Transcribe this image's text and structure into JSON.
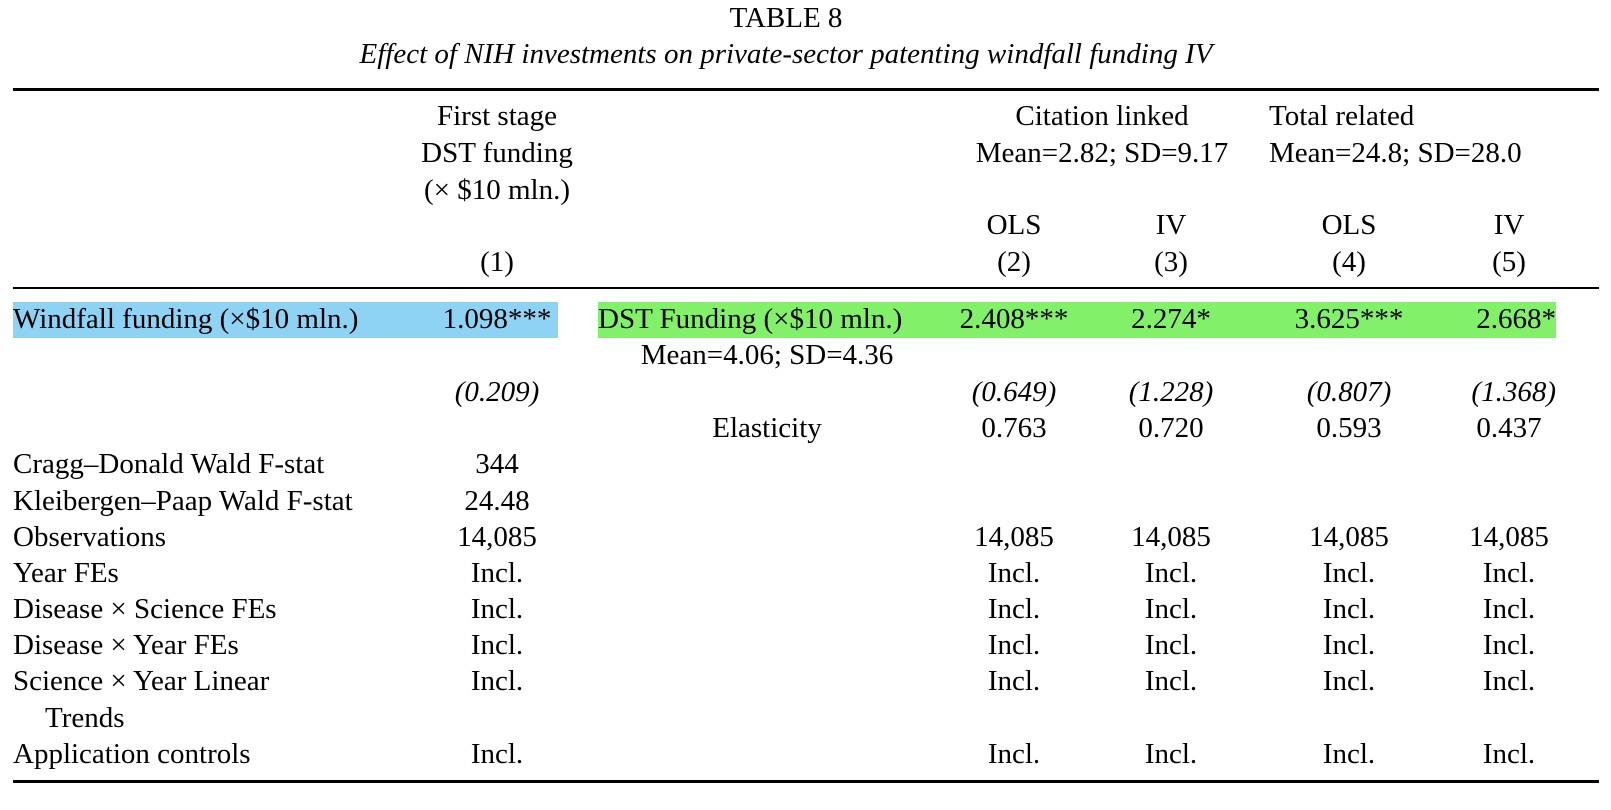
{
  "title": "TABLE 8",
  "subtitle": "Effect of NIH investments on private-sector patenting windfall funding IV",
  "colors": {
    "highlight_blue": "#8fd3f4",
    "highlight_green": "#83f06a"
  },
  "header": {
    "first_stage": [
      "First stage",
      "DST funding",
      "(× $10 mln.)"
    ],
    "citation_linked": [
      "Citation linked",
      "Mean=2.82; SD=9.17"
    ],
    "total_related": [
      "Total related",
      "Mean=24.8; SD=28.0"
    ],
    "methods": [
      "OLS",
      "IV",
      "OLS",
      "IV"
    ],
    "col_numbers": [
      "(1)",
      "(2)",
      "(3)",
      "(4)",
      "(5)"
    ]
  },
  "first_stage": {
    "label": "Windfall funding (×$10 mln.)",
    "coef": "1.098***",
    "se": "(0.209)"
  },
  "second_stage": {
    "label": "DST Funding (×$10 mln.)",
    "sublabel": "Mean=4.06; SD=4.36",
    "coefs": [
      "2.408***",
      "2.274*",
      "3.625***",
      "2.668*"
    ],
    "ses": [
      "(0.649)",
      "(1.228)",
      "(0.807)",
      "(1.368)"
    ],
    "elasticity_label": "Elasticity",
    "elasticities": [
      "0.763",
      "0.720",
      "0.593",
      "0.437"
    ]
  },
  "stats": {
    "cragg_label": "Cragg–Donald Wald F-stat",
    "cragg_value": "344",
    "kp_label": "Kleibergen–Paap Wald F-stat",
    "kp_value": "24.48"
  },
  "rows": [
    {
      "label": "Observations",
      "col1": "14,085",
      "values": [
        "14,085",
        "14,085",
        "14,085",
        "14,085"
      ]
    },
    {
      "label": "Year FEs",
      "col1": "Incl.",
      "values": [
        "Incl.",
        "Incl.",
        "Incl.",
        "Incl."
      ]
    },
    {
      "label": "Disease × Science FEs",
      "col1": "Incl.",
      "values": [
        "Incl.",
        "Incl.",
        "Incl.",
        "Incl."
      ]
    },
    {
      "label": "Disease × Year FEs",
      "col1": "Incl.",
      "values": [
        "Incl.",
        "Incl.",
        "Incl.",
        "Incl."
      ]
    },
    {
      "label": "Science × Year Linear",
      "label2": "Trends",
      "col1": "Incl.",
      "values": [
        "Incl.",
        "Incl.",
        "Incl.",
        "Incl."
      ]
    },
    {
      "label": "Application controls",
      "col1": "Incl.",
      "values": [
        "Incl.",
        "Incl.",
        "Incl.",
        "Incl."
      ]
    }
  ]
}
